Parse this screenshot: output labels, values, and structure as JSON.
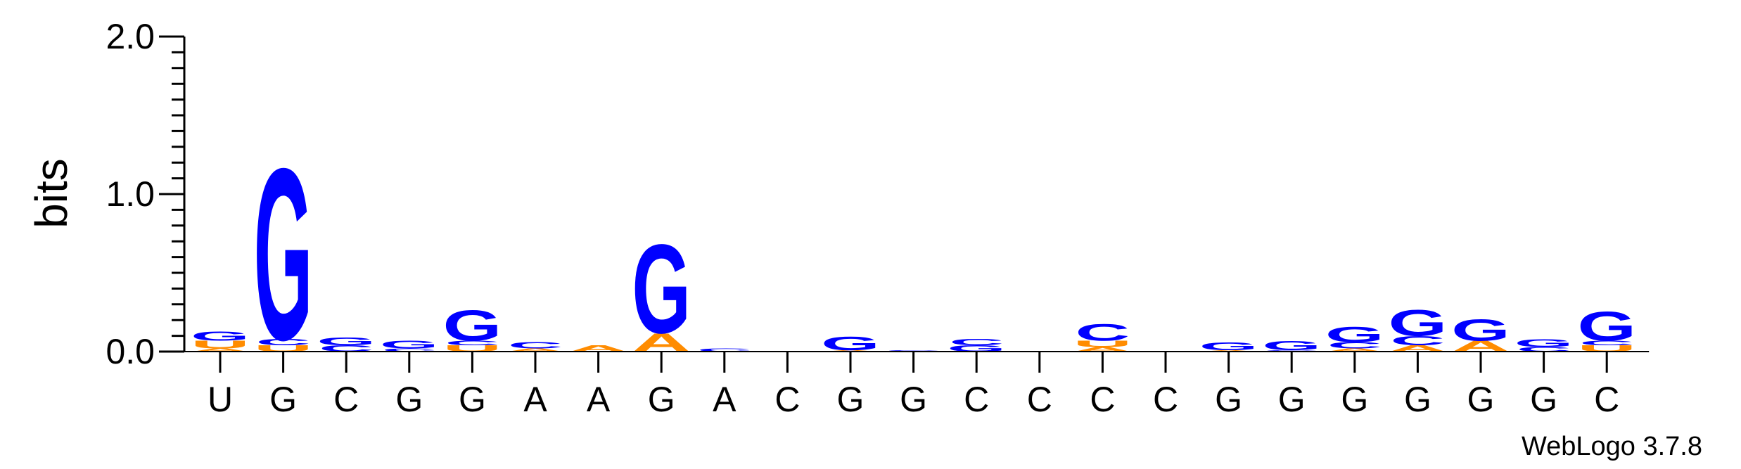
{
  "chart_data": {
    "type": "sequence-logo",
    "ylabel": "bits",
    "ylim": [
      0,
      2.0
    ],
    "yticks": [
      "0.0",
      "1.0",
      "2.0"
    ],
    "footer": "WebLogo 3.7.8",
    "colors": {
      "G": "#0000ff",
      "C": "#0000ff",
      "A": "#ff8c00",
      "U": "#ff8c00"
    },
    "positions": [
      {
        "label": "U",
        "stack": [
          {
            "l": "A",
            "h": 0.02
          },
          {
            "l": "U",
            "h": 0.05
          },
          {
            "l": "G",
            "h": 0.06
          }
        ]
      },
      {
        "label": "G",
        "stack": [
          {
            "l": "U",
            "h": 0.04
          },
          {
            "l": "C",
            "h": 0.04
          },
          {
            "l": "G",
            "h": 1.12
          }
        ]
      },
      {
        "label": "C",
        "stack": [
          {
            "l": "C",
            "h": 0.04
          },
          {
            "l": "G",
            "h": 0.05
          }
        ]
      },
      {
        "label": "G",
        "stack": [
          {
            "l": "C",
            "h": 0.02
          },
          {
            "l": "G",
            "h": 0.05
          }
        ]
      },
      {
        "label": "G",
        "stack": [
          {
            "l": "U",
            "h": 0.04
          },
          {
            "l": "C",
            "h": 0.03
          },
          {
            "l": "G",
            "h": 0.2
          }
        ]
      },
      {
        "label": "A",
        "stack": [
          {
            "l": "A",
            "h": 0.02
          },
          {
            "l": "C",
            "h": 0.04
          }
        ]
      },
      {
        "label": "A",
        "stack": [
          {
            "l": "A",
            "h": 0.04
          }
        ]
      },
      {
        "label": "G",
        "stack": [
          {
            "l": "A",
            "h": 0.12
          },
          {
            "l": "G",
            "h": 0.58
          }
        ]
      },
      {
        "label": "A",
        "stack": [
          {
            "l": "C",
            "h": 0.02
          }
        ]
      },
      {
        "label": "C",
        "stack": []
      },
      {
        "label": "G",
        "stack": [
          {
            "l": "A",
            "h": 0.01
          },
          {
            "l": "G",
            "h": 0.09
          }
        ]
      },
      {
        "label": "G",
        "stack": [
          {
            "l": "C",
            "h": 0.01
          }
        ]
      },
      {
        "label": "C",
        "stack": [
          {
            "l": "G",
            "h": 0.04
          },
          {
            "l": "C",
            "h": 0.04
          }
        ]
      },
      {
        "label": "C",
        "stack": []
      },
      {
        "label": "C",
        "stack": [
          {
            "l": "A",
            "h": 0.03
          },
          {
            "l": "U",
            "h": 0.04
          },
          {
            "l": "C",
            "h": 0.11
          }
        ]
      },
      {
        "label": "C",
        "stack": []
      },
      {
        "label": "G",
        "stack": [
          {
            "l": "A",
            "h": 0.01
          },
          {
            "l": "G",
            "h": 0.05
          }
        ]
      },
      {
        "label": "G",
        "stack": [
          {
            "l": "C",
            "h": 0.01
          },
          {
            "l": "G",
            "h": 0.06
          }
        ]
      },
      {
        "label": "G",
        "stack": [
          {
            "l": "A",
            "h": 0.02
          },
          {
            "l": "C",
            "h": 0.04
          },
          {
            "l": "G",
            "h": 0.1
          }
        ]
      },
      {
        "label": "G",
        "stack": [
          {
            "l": "A",
            "h": 0.04
          },
          {
            "l": "C",
            "h": 0.06
          },
          {
            "l": "G",
            "h": 0.17
          }
        ]
      },
      {
        "label": "G",
        "stack": [
          {
            "l": "A",
            "h": 0.07
          },
          {
            "l": "G",
            "h": 0.14
          }
        ]
      },
      {
        "label": "G",
        "stack": [
          {
            "l": "C",
            "h": 0.03
          },
          {
            "l": "G",
            "h": 0.05
          }
        ]
      },
      {
        "label": "C",
        "stack": [
          {
            "l": "U",
            "h": 0.04
          },
          {
            "l": "C",
            "h": 0.03
          },
          {
            "l": "G",
            "h": 0.19
          }
        ]
      }
    ]
  }
}
